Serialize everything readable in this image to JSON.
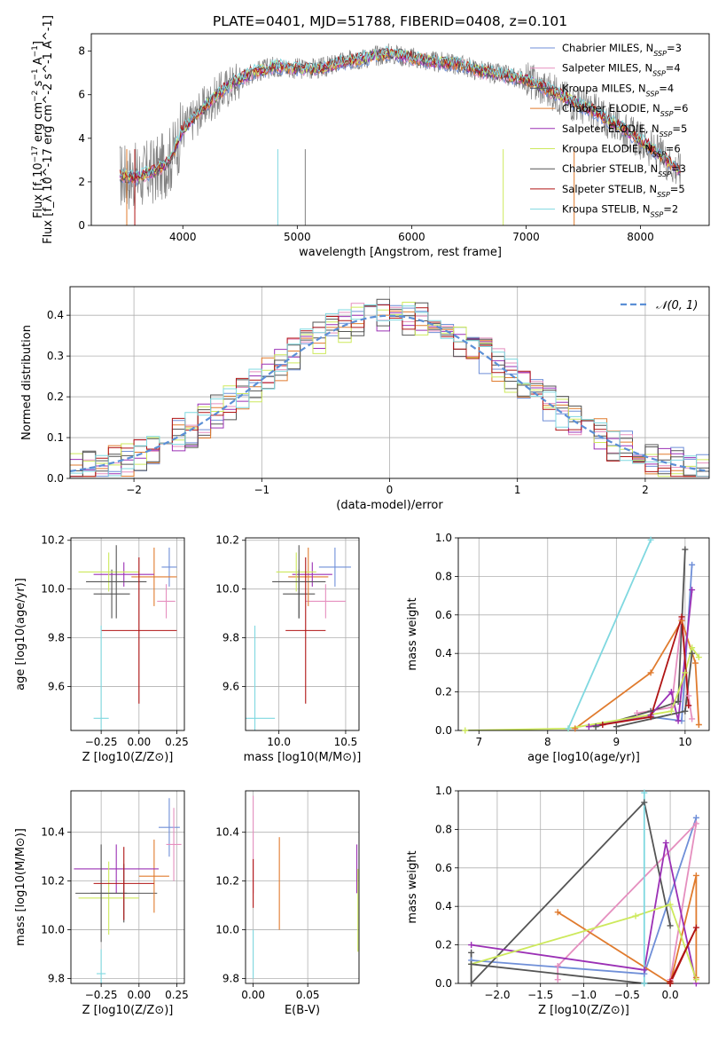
{
  "title": "PLATE=0401, MJD=51788, FIBERID=0408, z=0.101",
  "colors": {
    "Chabrier MILES": "#6f8fd8",
    "Salpeter MILES": "#e58fbf",
    "Kroupa MILES": "#555555",
    "Chabrier ELODIE": "#e07b2e",
    "Salpeter ELODIE": "#9b30b5",
    "Kroupa ELODIE": "#cde95c",
    "Chabrier STELIB": "#555555",
    "Salpeter STELIB": "#b01414",
    "Kroupa STELIB": "#7fd8e0",
    "data": "#808080",
    "gauss": "#5b8fd6"
  },
  "chart_data": [
    {
      "type": "line",
      "name": "spectrum",
      "xlabel": "wavelength [Angstrom, rest frame]",
      "ylabel": "Flux [f_λ 10^-17 erg cm^-2 s^-1 A^-1]",
      "ylabel_parts": [
        "Flux [f",
        "λ",
        "10",
        "−17",
        " erg cm",
        "−2",
        " s",
        "−1",
        " A",
        "−1",
        "]"
      ],
      "xlim": [
        3200,
        8600
      ],
      "ylim": [
        0,
        8.8
      ],
      "xticks": [
        "4000",
        "5000",
        "6000",
        "7000",
        "8000"
      ],
      "yticks": [
        "0",
        "2",
        "4",
        "6",
        "8"
      ],
      "legend_position": "right",
      "legend": [
        {
          "label": "Chabrier MILES, N",
          "sub": "SSP",
          "eq": "=3"
        },
        {
          "label": "Salpeter MILES, N",
          "sub": "SSP",
          "eq": "=4"
        },
        {
          "label": "Kroupa MILES, N",
          "sub": "SSP",
          "eq": "=4"
        },
        {
          "label": "Chabrier ELODIE, N",
          "sub": "SSP",
          "eq": "=6"
        },
        {
          "label": "Salpeter ELODIE, N",
          "sub": "SSP",
          "eq": "=5"
        },
        {
          "label": "Kroupa ELODIE, N",
          "sub": "SSP",
          "eq": "=6"
        },
        {
          "label": "Chabrier STELIB, N",
          "sub": "SSP",
          "eq": "=3"
        },
        {
          "label": "Salpeter STELIB, N",
          "sub": "SSP",
          "eq": "=5"
        },
        {
          "label": "Kroupa STELIB, N",
          "sub": "SSP",
          "eq": "=2"
        }
      ],
      "continuum": [
        [
          3450,
          2.3
        ],
        [
          3600,
          2.2
        ],
        [
          3700,
          2.4
        ],
        [
          3800,
          2.6
        ],
        [
          3900,
          3.1
        ],
        [
          4000,
          4.4
        ],
        [
          4200,
          5.5
        ],
        [
          4400,
          6.4
        ],
        [
          4600,
          7.0
        ],
        [
          4800,
          7.3
        ],
        [
          5000,
          7.2
        ],
        [
          5200,
          7.2
        ],
        [
          5400,
          7.5
        ],
        [
          5600,
          7.7
        ],
        [
          5800,
          7.9
        ],
        [
          6000,
          7.7
        ],
        [
          6200,
          7.5
        ],
        [
          6400,
          7.4
        ],
        [
          6600,
          7.1
        ],
        [
          6800,
          6.9
        ],
        [
          7000,
          6.7
        ],
        [
          7200,
          6.2
        ],
        [
          7400,
          5.7
        ],
        [
          7600,
          5.2
        ],
        [
          7800,
          4.6
        ],
        [
          8000,
          3.9
        ],
        [
          8200,
          3.1
        ],
        [
          8350,
          2.5
        ]
      ]
    },
    {
      "type": "bar",
      "name": "residuals",
      "xlabel": "(data-model)/error",
      "ylabel": "Normed distribution",
      "xlim": [
        -2.5,
        2.5
      ],
      "ylim": [
        0,
        0.47
      ],
      "xticks": [
        "−2",
        "−1",
        "0",
        "1",
        "2"
      ],
      "yticks": [
        "0.0",
        "0.1",
        "0.2",
        "0.3",
        "0.4"
      ],
      "gauss_label": "𝒩(0, 1)",
      "grid": true,
      "bin_width": 0.1
    },
    {
      "type": "scatter",
      "name": "age-vs-Z",
      "xlabel": "Z [log10(Z/Z⊙)]",
      "ylabel": "age [log10(age/yr)]",
      "xlim": [
        -0.45,
        0.3
      ],
      "ylim": [
        9.42,
        10.21
      ],
      "xticks": [
        "−0.25",
        "0.00",
        "0.25"
      ],
      "yticks": [
        "9.6",
        "9.8",
        "10.0",
        "10.2"
      ],
      "points": [
        {
          "c": "Chabrier MILES",
          "x": 0.2,
          "xe": 0.05,
          "y": 10.09,
          "ye": 0.08
        },
        {
          "c": "Salpeter MILES",
          "x": 0.18,
          "xe": 0.06,
          "y": 9.95,
          "ye": 0.07
        },
        {
          "c": "Kroupa MILES",
          "x": -0.18,
          "xe": 0.12,
          "y": 9.98,
          "ye": 0.1
        },
        {
          "c": "Chabrier ELODIE",
          "x": 0.1,
          "xe": 0.15,
          "y": 10.05,
          "ye": 0.12
        },
        {
          "c": "Salpeter ELODIE",
          "x": -0.1,
          "xe": 0.2,
          "y": 10.06,
          "ye": 0.05
        },
        {
          "c": "Kroupa ELODIE",
          "x": -0.2,
          "xe": 0.2,
          "y": 10.07,
          "ye": 0.08
        },
        {
          "c": "Chabrier STELIB",
          "x": -0.15,
          "xe": 0.2,
          "y": 10.03,
          "ye": 0.15
        },
        {
          "c": "Salpeter STELIB",
          "x": 0.0,
          "xe": 0.25,
          "y": 9.83,
          "ye": 0.3
        },
        {
          "c": "Kroupa STELIB",
          "x": -0.25,
          "xe": 0.05,
          "y": 9.47,
          "ye": 0.38
        }
      ]
    },
    {
      "type": "scatter",
      "name": "age-vs-mass",
      "xlabel": "mass [log10(M/M⊙)]",
      "ylabel": "",
      "xlim": [
        9.75,
        10.6
      ],
      "ylim": [
        9.42,
        10.21
      ],
      "xticks": [
        "10.0",
        "10.5"
      ],
      "yticks": [
        "9.6",
        "9.8",
        "10.0",
        "10.2"
      ],
      "points": [
        {
          "c": "Chabrier MILES",
          "x": 10.42,
          "xe": 0.12,
          "y": 10.09,
          "ye": 0.08
        },
        {
          "c": "Salpeter MILES",
          "x": 10.35,
          "xe": 0.15,
          "y": 9.95,
          "ye": 0.07
        },
        {
          "c": "Kroupa MILES",
          "x": 10.15,
          "xe": 0.12,
          "y": 9.98,
          "ye": 0.1
        },
        {
          "c": "Chabrier ELODIE",
          "x": 10.22,
          "xe": 0.15,
          "y": 10.05,
          "ye": 0.12
        },
        {
          "c": "Salpeter ELODIE",
          "x": 10.25,
          "xe": 0.15,
          "y": 10.06,
          "ye": 0.05
        },
        {
          "c": "Kroupa ELODIE",
          "x": 10.13,
          "xe": 0.15,
          "y": 10.07,
          "ye": 0.08
        },
        {
          "c": "Chabrier STELIB",
          "x": 10.15,
          "xe": 0.2,
          "y": 10.03,
          "ye": 0.15
        },
        {
          "c": "Salpeter STELIB",
          "x": 10.2,
          "xe": 0.15,
          "y": 9.83,
          "ye": 0.3
        },
        {
          "c": "Kroupa STELIB",
          "x": 9.82,
          "xe": 0.15,
          "y": 9.47,
          "ye": 0.38
        }
      ]
    },
    {
      "type": "line",
      "name": "mass-weight-vs-age",
      "xlabel": "age [log10(age/yr)]",
      "ylabel": "mass weight",
      "xlim": [
        6.7,
        10.35
      ],
      "ylim": [
        0,
        1.0
      ],
      "xticks": [
        "7",
        "8",
        "9",
        "10"
      ],
      "yticks": [
        "0.0",
        "0.2",
        "0.4",
        "0.6",
        "0.8",
        "1.0"
      ],
      "series": [
        {
          "c": "Chabrier MILES",
          "points": [
            [
              9.5,
              0.07
            ],
            [
              9.95,
              0.05
            ],
            [
              10.1,
              0.86
            ]
          ]
        },
        {
          "c": "Salpeter MILES",
          "points": [
            [
              9.3,
              0.09
            ],
            [
              9.8,
              0.12
            ],
            [
              9.95,
              0.58
            ],
            [
              10.05,
              0.18
            ],
            [
              10.1,
              0.06
            ]
          ]
        },
        {
          "c": "Kroupa MILES",
          "points": [
            [
              8.7,
              0.02
            ],
            [
              9.5,
              0.1
            ],
            [
              9.9,
              0.15
            ],
            [
              10.0,
              0.94
            ]
          ]
        },
        {
          "c": "Chabrier ELODIE",
          "points": [
            [
              8.4,
              0.01
            ],
            [
              9.5,
              0.3
            ],
            [
              9.95,
              0.57
            ],
            [
              10.15,
              0.35
            ],
            [
              10.2,
              0.03
            ]
          ]
        },
        {
          "c": "Salpeter ELODIE",
          "points": [
            [
              8.6,
              0.02
            ],
            [
              9.5,
              0.08
            ],
            [
              9.8,
              0.2
            ],
            [
              9.9,
              0.05
            ],
            [
              10.1,
              0.73
            ]
          ]
        },
        {
          "c": "Kroupa ELODIE",
          "points": [
            [
              6.8,
              0.0
            ],
            [
              8.3,
              0.01
            ],
            [
              9.8,
              0.1
            ],
            [
              10.0,
              0.3
            ],
            [
              10.1,
              0.43
            ],
            [
              10.2,
              0.38
            ]
          ]
        },
        {
          "c": "Chabrier STELIB",
          "points": [
            [
              9.0,
              0.02
            ],
            [
              10.0,
              0.1
            ],
            [
              10.1,
              0.4
            ]
          ]
        },
        {
          "c": "Salpeter STELIB",
          "points": [
            [
              8.8,
              0.03
            ],
            [
              9.5,
              0.07
            ],
            [
              9.95,
              0.59
            ],
            [
              10.05,
              0.13
            ]
          ]
        },
        {
          "c": "Kroupa STELIB",
          "points": [
            [
              8.3,
              0.01
            ],
            [
              9.5,
              0.99
            ]
          ]
        }
      ]
    },
    {
      "type": "scatter",
      "name": "mass-vs-Z",
      "xlabel": "Z [log10(Z/Z⊙)]",
      "ylabel": "mass [log10(M/M⊙)]",
      "xlim": [
        -0.45,
        0.3
      ],
      "ylim": [
        9.78,
        10.57
      ],
      "xticks": [
        "−0.25",
        "0.00",
        "0.25"
      ],
      "yticks": [
        "9.8",
        "10.0",
        "10.2",
        "10.4"
      ],
      "points": [
        {
          "c": "Chabrier MILES",
          "x": 0.2,
          "xe": 0.07,
          "y": 10.42,
          "ye": 0.12
        },
        {
          "c": "Salpeter MILES",
          "x": 0.23,
          "xe": 0.05,
          "y": 10.35,
          "ye": 0.15
        },
        {
          "c": "Kroupa MILES",
          "x": -0.1,
          "xe": 0.22,
          "y": 10.15,
          "ye": 0.12
        },
        {
          "c": "Chabrier ELODIE",
          "x": 0.1,
          "xe": 0.1,
          "y": 10.22,
          "ye": 0.15
        },
        {
          "c": "Salpeter ELODIE",
          "x": -0.15,
          "xe": 0.28,
          "y": 10.25,
          "ye": 0.1
        },
        {
          "c": "Kroupa ELODIE",
          "x": -0.2,
          "xe": 0.2,
          "y": 10.13,
          "ye": 0.15
        },
        {
          "c": "Chabrier STELIB",
          "x": -0.25,
          "xe": 0.17,
          "y": 10.15,
          "ye": 0.2
        },
        {
          "c": "Salpeter STELIB",
          "x": -0.1,
          "xe": 0.2,
          "y": 10.19,
          "ye": 0.15
        },
        {
          "c": "Kroupa STELIB",
          "x": -0.25,
          "xe": 0.03,
          "y": 9.82,
          "ye": 0.1
        }
      ]
    },
    {
      "type": "scatter",
      "name": "mass-vs-EBV",
      "xlabel": "E(B-V)",
      "ylabel": "",
      "xlim": [
        -0.007,
        0.097
      ],
      "ylim": [
        9.78,
        10.57
      ],
      "xticks": [
        "0.00",
        "0.05"
      ],
      "yticks": [
        "9.8",
        "10.0",
        "10.2",
        "10.4"
      ],
      "points": [
        {
          "c": "Salpeter MILES",
          "x": 0.0,
          "y": 10.35,
          "ye": 0.2
        },
        {
          "c": "Salpeter STELIB",
          "x": 0.0,
          "y": 10.19,
          "ye": 0.1
        },
        {
          "c": "Kroupa STELIB",
          "x": 0.0,
          "y": 9.9,
          "ye": 0.1
        },
        {
          "c": "Chabrier ELODIE",
          "x": 0.024,
          "y": 10.19,
          "ye": 0.19
        },
        {
          "c": "Salpeter ELODIE",
          "x": 0.095,
          "y": 10.25,
          "ye": 0.1
        },
        {
          "c": "Kroupa ELODIE",
          "x": 0.096,
          "y": 10.08,
          "ye": 0.17
        }
      ]
    },
    {
      "type": "line",
      "name": "mass-weight-vs-Z",
      "xlabel": "Z [log10(Z/Z⊙)]",
      "ylabel": "mass weight",
      "xlim": [
        -2.45,
        0.45
      ],
      "ylim": [
        0,
        1.0
      ],
      "xticks": [
        "−2.0",
        "−1.5",
        "−1.0",
        "−0.5",
        "0.0"
      ],
      "yticks": [
        "0.0",
        "0.2",
        "0.4",
        "0.6",
        "0.8",
        "1.0"
      ],
      "series": [
        {
          "c": "Chabrier MILES",
          "points": [
            [
              -2.3,
              0.12
            ],
            [
              -0.3,
              0.05
            ],
            [
              0.3,
              0.86
            ]
          ]
        },
        {
          "c": "Salpeter MILES",
          "points": [
            [
              -1.3,
              0.02
            ],
            [
              -1.3,
              0.09
            ],
            [
              0.3,
              0.83
            ],
            [
              0.0,
              0.02
            ]
          ]
        },
        {
          "c": "Kroupa MILES",
          "points": [
            [
              -2.3,
              0.16
            ],
            [
              -2.3,
              0.0
            ],
            [
              -0.3,
              0.94
            ],
            [
              0.0,
              0.3
            ]
          ]
        },
        {
          "c": "Chabrier ELODIE",
          "points": [
            [
              -1.3,
              0.37
            ],
            [
              0.0,
              0.0
            ],
            [
              0.3,
              0.56
            ],
            [
              0.3,
              0.03
            ]
          ]
        },
        {
          "c": "Salpeter ELODIE",
          "points": [
            [
              -2.3,
              0.2
            ],
            [
              -0.3,
              0.07
            ],
            [
              -0.05,
              0.73
            ],
            [
              0.3,
              0.0
            ]
          ]
        },
        {
          "c": "Kroupa ELODIE",
          "points": [
            [
              -2.3,
              0.1
            ],
            [
              -0.4,
              0.35
            ],
            [
              0.0,
              0.41
            ],
            [
              0.3,
              0.02
            ]
          ]
        },
        {
          "c": "Chabrier STELIB",
          "points": [
            [
              -2.3,
              0.1
            ],
            [
              -0.3,
              0.0
            ],
            [
              0.0,
              0.0
            ]
          ]
        },
        {
          "c": "Salpeter STELIB",
          "points": [
            [
              0.0,
              0.01
            ],
            [
              0.3,
              0.29
            ],
            [
              0.0,
              0.0
            ]
          ]
        },
        {
          "c": "Kroupa STELIB",
          "points": [
            [
              -0.3,
              0.99
            ],
            [
              -0.3,
              0.0
            ]
          ]
        }
      ]
    }
  ]
}
